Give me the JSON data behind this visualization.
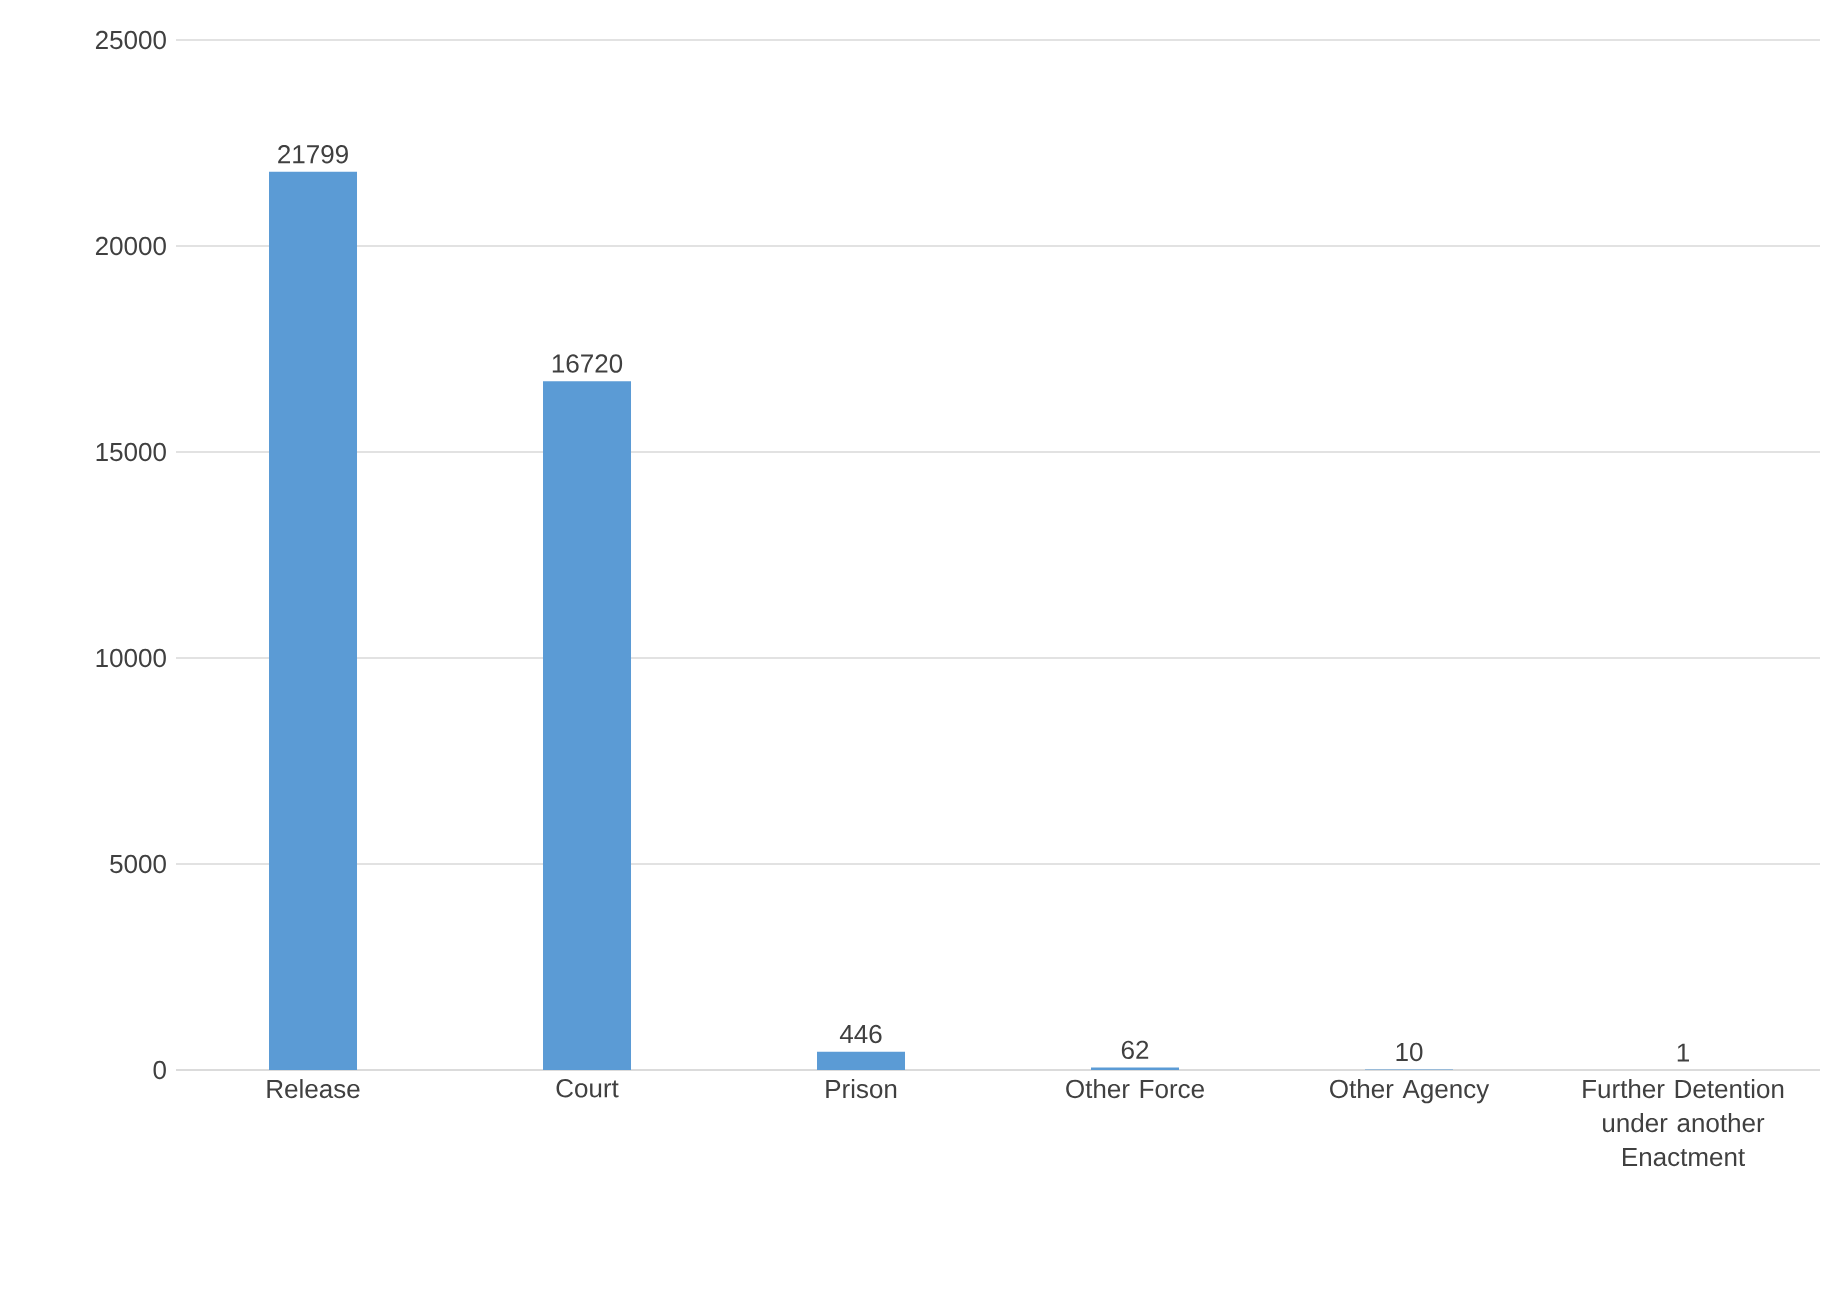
{
  "chart_data": {
    "type": "bar",
    "categories": [
      "Release",
      "Court",
      "Prison",
      "Other Force",
      "Other Agency",
      "Further Detention under another Enactment"
    ],
    "values": [
      21799,
      16720,
      446,
      62,
      10,
      1
    ],
    "color": "#5b9bd5",
    "ylim": [
      0,
      25000
    ],
    "yticks": [
      0,
      5000,
      10000,
      15000,
      20000,
      25000
    ],
    "grid": "y",
    "data_labels": true
  }
}
